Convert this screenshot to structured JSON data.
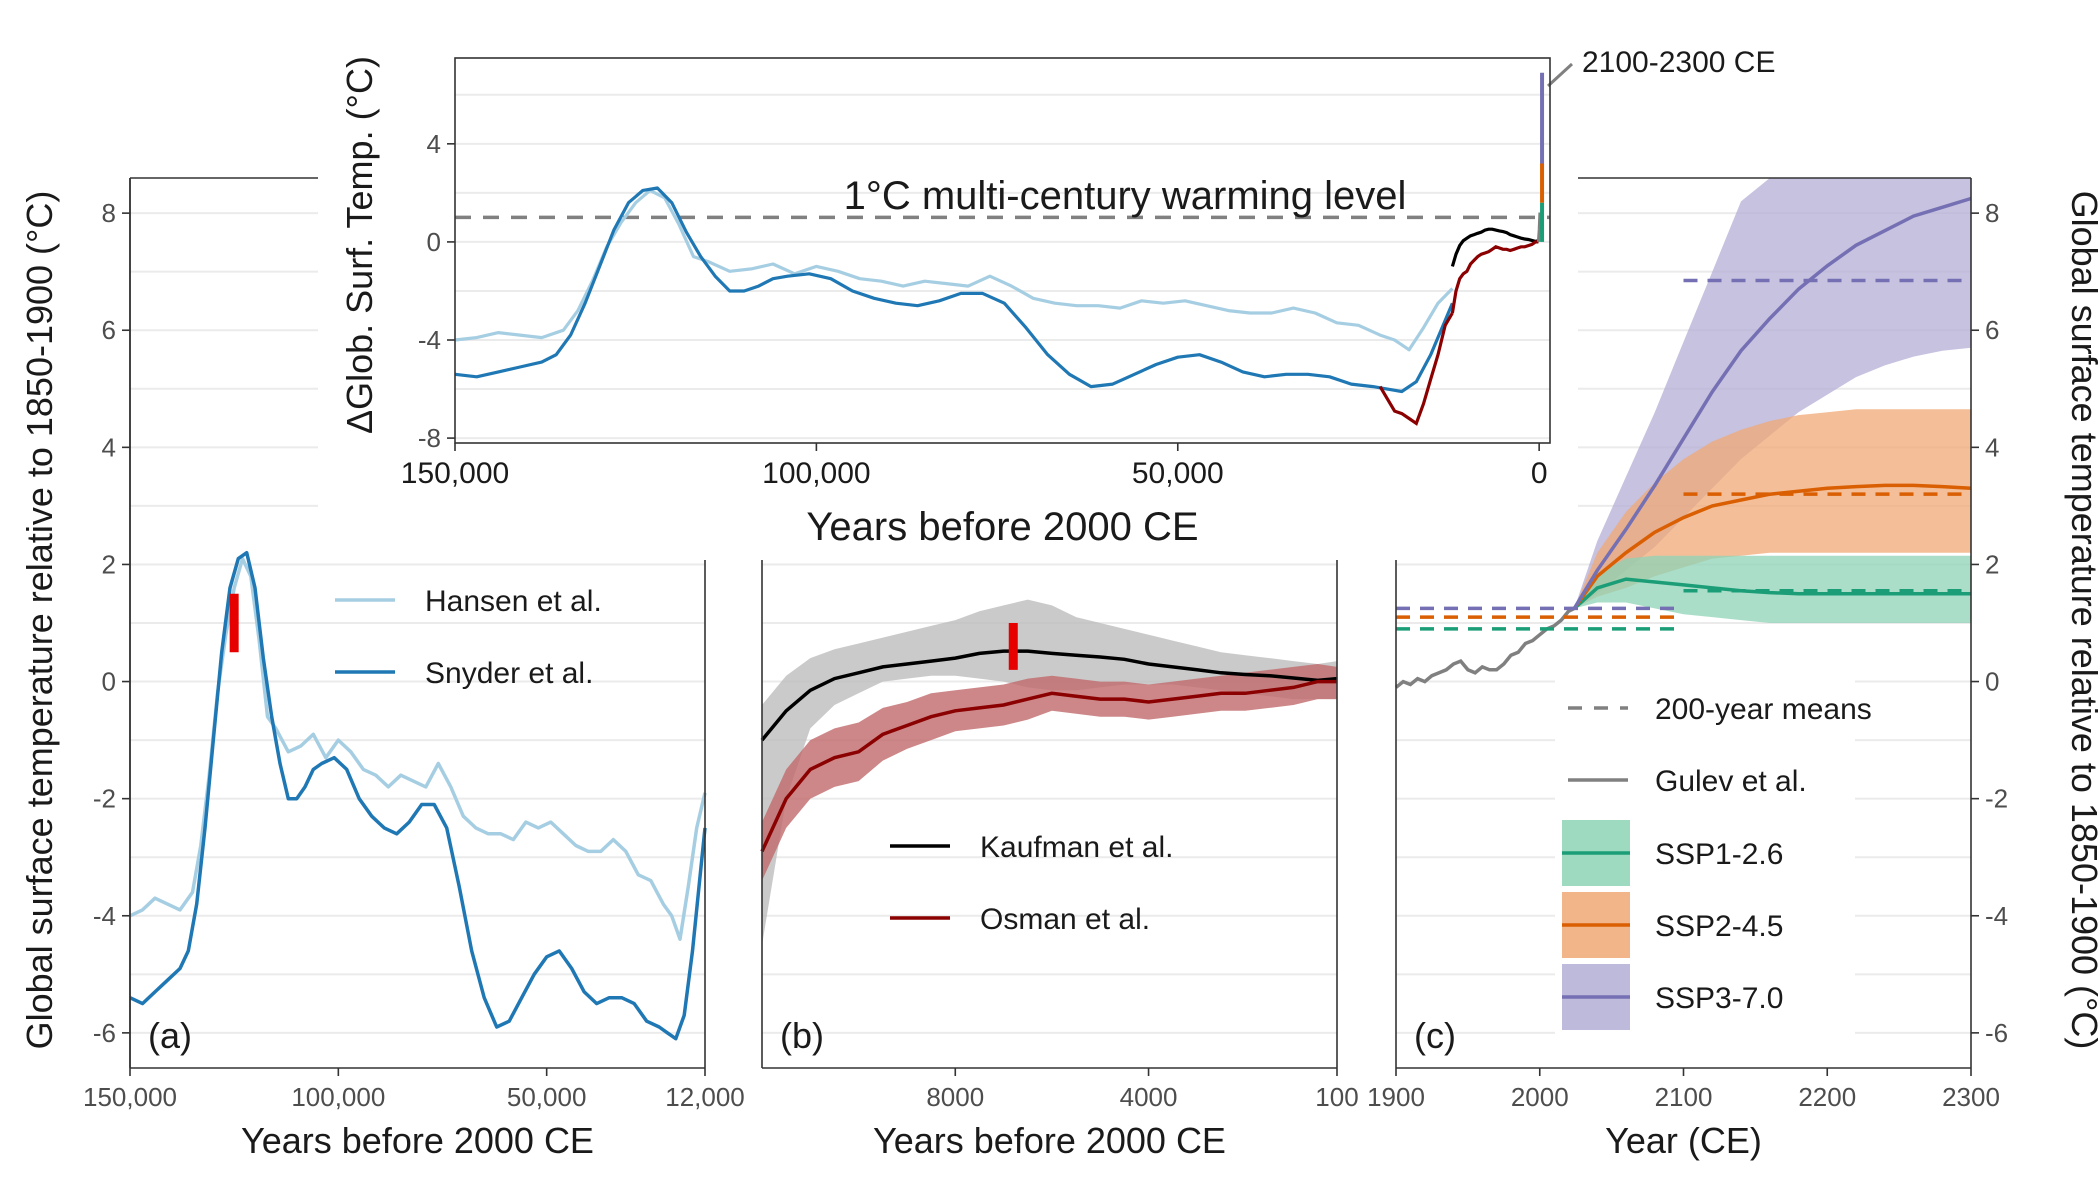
{
  "chart_data": [
    {
      "type": "line",
      "panel_label": "(a)",
      "xlabel": "Years before 2000 CE",
      "ylabel": "Global surface temperature relative to 1850-1900 (°C)",
      "xlim": [
        150000,
        12000
      ],
      "ylim": [
        -6.6,
        8.6
      ],
      "x_ticks": [
        150000,
        100000,
        50000,
        12000
      ],
      "x_tick_labels": [
        "150,000",
        "100,000",
        "50,000",
        "12,000"
      ],
      "y_ticks": [
        -6,
        -4,
        -2,
        0,
        2,
        4,
        6,
        8
      ],
      "grid": true,
      "marker": {
        "x": 125000,
        "y_range": [
          0.5,
          1.5
        ],
        "color": "#e60000"
      },
      "legend": {
        "position": "top-right"
      },
      "series": [
        {
          "name": "Hansen et al.",
          "color": "#a6cee3",
          "x": [
            150000,
            147000,
            144000,
            141000,
            138000,
            135000,
            133000,
            131000,
            129000,
            127000,
            125000,
            123000,
            121000,
            119000,
            117000,
            115000,
            112000,
            109000,
            106000,
            103000,
            100000,
            97000,
            94000,
            91000,
            88000,
            85000,
            82000,
            79000,
            76000,
            73000,
            70000,
            67000,
            64000,
            61000,
            58000,
            55000,
            52000,
            49000,
            46000,
            43000,
            40000,
            37000,
            34000,
            31000,
            28000,
            25000,
            22000,
            20000,
            18000,
            16000,
            14000,
            12000
          ],
          "y": [
            -4.0,
            -3.9,
            -3.7,
            -3.8,
            -3.9,
            -3.6,
            -2.8,
            -1.6,
            -0.2,
            0.8,
            1.6,
            2.1,
            1.8,
            0.7,
            -0.6,
            -0.8,
            -1.2,
            -1.1,
            -0.9,
            -1.3,
            -1.0,
            -1.2,
            -1.5,
            -1.6,
            -1.8,
            -1.6,
            -1.7,
            -1.8,
            -1.4,
            -1.8,
            -2.3,
            -2.5,
            -2.6,
            -2.6,
            -2.7,
            -2.4,
            -2.5,
            -2.4,
            -2.6,
            -2.8,
            -2.9,
            -2.9,
            -2.7,
            -2.9,
            -3.3,
            -3.4,
            -3.8,
            -4.0,
            -4.4,
            -3.5,
            -2.5,
            -1.9
          ]
        },
        {
          "name": "Snyder et al.",
          "color": "#1f78b4",
          "x": [
            150000,
            147000,
            144000,
            141000,
            138000,
            136000,
            134000,
            132000,
            130000,
            128000,
            126000,
            124000,
            122000,
            120000,
            118000,
            116000,
            114000,
            112000,
            110000,
            108000,
            106000,
            104000,
            101000,
            98000,
            95000,
            92000,
            89000,
            86000,
            83000,
            80000,
            77000,
            74000,
            71000,
            68000,
            65000,
            62000,
            59000,
            56000,
            53000,
            50000,
            47000,
            44000,
            41000,
            38000,
            35000,
            32000,
            29000,
            26000,
            23000,
            21000,
            19000,
            17000,
            15000,
            13000,
            12000
          ],
          "y": [
            -5.4,
            -5.5,
            -5.3,
            -5.1,
            -4.9,
            -4.6,
            -3.8,
            -2.5,
            -1.0,
            0.5,
            1.6,
            2.1,
            2.2,
            1.6,
            0.4,
            -0.6,
            -1.4,
            -2.0,
            -2.0,
            -1.8,
            -1.5,
            -1.4,
            -1.3,
            -1.5,
            -2.0,
            -2.3,
            -2.5,
            -2.6,
            -2.4,
            -2.1,
            -2.1,
            -2.5,
            -3.5,
            -4.6,
            -5.4,
            -5.9,
            -5.8,
            -5.4,
            -5.0,
            -4.7,
            -4.6,
            -4.9,
            -5.3,
            -5.5,
            -5.4,
            -5.4,
            -5.5,
            -5.8,
            -5.9,
            -6.0,
            -6.1,
            -5.7,
            -4.6,
            -3.2,
            -2.5
          ]
        }
      ]
    },
    {
      "type": "line",
      "panel_label": "(b)",
      "xlabel": "Years before 2000 CE",
      "xlim": [
        12000,
        100
      ],
      "ylim": [
        -6.6,
        8.6
      ],
      "x_ticks": [
        8000,
        4000,
        100
      ],
      "x_tick_labels": [
        "8000",
        "4000",
        "100"
      ],
      "grid": true,
      "marker": {
        "x": 6800,
        "y_range": [
          0.2,
          1.0
        ],
        "color": "#e60000"
      },
      "legend": {
        "position": "center"
      },
      "series": [
        {
          "name": "Kaufman et al.",
          "color": "#000000",
          "band_color": "#bdbdbd",
          "x": [
            12000,
            11500,
            11000,
            10500,
            10000,
            9500,
            9000,
            8500,
            8000,
            7500,
            7000,
            6500,
            6000,
            5500,
            5000,
            4500,
            4000,
            3500,
            3000,
            2500,
            2000,
            1500,
            1000,
            500,
            100
          ],
          "y": [
            -1.0,
            -0.5,
            -0.15,
            0.05,
            0.15,
            0.25,
            0.3,
            0.35,
            0.4,
            0.48,
            0.52,
            0.52,
            0.48,
            0.45,
            0.42,
            0.38,
            0.3,
            0.25,
            0.2,
            0.15,
            0.12,
            0.1,
            0.06,
            0.02,
            0.05
          ],
          "upper": [
            -0.4,
            0.1,
            0.4,
            0.55,
            0.65,
            0.75,
            0.85,
            0.95,
            1.05,
            1.2,
            1.3,
            1.4,
            1.3,
            1.1,
            1.0,
            0.9,
            0.8,
            0.7,
            0.6,
            0.5,
            0.45,
            0.4,
            0.35,
            0.3,
            0.35
          ],
          "lower": [
            -4.5,
            -2.0,
            -0.8,
            -0.4,
            -0.2,
            0.0,
            0.05,
            0.1,
            0.1,
            0.05,
            0.0,
            -0.1,
            -0.15,
            -0.15,
            -0.1,
            -0.05,
            -0.05,
            -0.05,
            -0.1,
            -0.15,
            -0.2,
            -0.25,
            -0.3,
            -0.3,
            -0.3
          ]
        },
        {
          "name": "Osman et al.",
          "color": "#8b0000",
          "band_color": "#c0696a",
          "x": [
            12000,
            11500,
            11000,
            10500,
            10000,
            9500,
            9000,
            8500,
            8000,
            7500,
            7000,
            6500,
            6000,
            5500,
            5000,
            4500,
            4000,
            3500,
            3000,
            2500,
            2000,
            1500,
            1000,
            500,
            100
          ],
          "y": [
            -2.9,
            -2.0,
            -1.5,
            -1.3,
            -1.2,
            -0.9,
            -0.75,
            -0.6,
            -0.5,
            -0.45,
            -0.4,
            -0.3,
            -0.2,
            -0.25,
            -0.3,
            -0.3,
            -0.35,
            -0.3,
            -0.25,
            -0.2,
            -0.2,
            -0.15,
            -0.1,
            0.0,
            0.0
          ],
          "upper": [
            -2.4,
            -1.5,
            -1.0,
            -0.8,
            -0.7,
            -0.45,
            -0.35,
            -0.2,
            -0.15,
            -0.1,
            -0.05,
            0.05,
            0.1,
            0.05,
            0.0,
            0.0,
            -0.05,
            0.0,
            0.05,
            0.1,
            0.15,
            0.2,
            0.25,
            0.3,
            0.25
          ],
          "lower": [
            -3.4,
            -2.5,
            -2.0,
            -1.8,
            -1.7,
            -1.35,
            -1.15,
            -1.0,
            -0.85,
            -0.8,
            -0.75,
            -0.65,
            -0.5,
            -0.55,
            -0.6,
            -0.6,
            -0.65,
            -0.6,
            -0.55,
            -0.5,
            -0.5,
            -0.45,
            -0.4,
            -0.3,
            -0.3
          ]
        }
      ]
    },
    {
      "type": "line",
      "panel_label": "(c)",
      "xlabel": "Year (CE)",
      "ylabel": "Global surface temperature relative to 1850-1900 (°C)",
      "xlim": [
        1900,
        2300
      ],
      "ylim": [
        -6.6,
        8.6
      ],
      "x_ticks": [
        1900,
        2000,
        2100,
        2200,
        2300
      ],
      "x_tick_labels": [
        "1900",
        "2000",
        "2100",
        "2200",
        "2300"
      ],
      "y_ticks": [
        -6,
        -4,
        -2,
        0,
        2,
        4,
        6,
        8
      ],
      "grid": true,
      "legend": {
        "position": "bottom-right"
      },
      "series": [
        {
          "name": "Gulev et al.",
          "color": "#808080",
          "x": [
            1900,
            1905,
            1910,
            1915,
            1920,
            1925,
            1930,
            1935,
            1940,
            1945,
            1950,
            1955,
            1960,
            1965,
            1970,
            1975,
            1980,
            1985,
            1990,
            1995,
            2000,
            2005,
            2010,
            2015,
            2020,
            2024
          ],
          "y": [
            -0.1,
            0.0,
            -0.05,
            0.05,
            0.0,
            0.1,
            0.15,
            0.2,
            0.3,
            0.35,
            0.2,
            0.15,
            0.25,
            0.2,
            0.2,
            0.3,
            0.45,
            0.5,
            0.65,
            0.7,
            0.8,
            0.9,
            0.95,
            1.05,
            1.2,
            1.25
          ]
        },
        {
          "name": "SSP1-2.6",
          "color": "#1b9e77",
          "band_color": "#8dd3b5",
          "mean_200yr": {
            "x_range": [
              2100,
              2300
            ],
            "y": 1.55
          },
          "mean_hist": {
            "x_range": [
              1900,
              2100
            ],
            "y": 0.9
          },
          "x": [
            2024,
            2040,
            2060,
            2080,
            2100,
            2120,
            2140,
            2160,
            2180,
            2200,
            2220,
            2240,
            2260,
            2280,
            2300
          ],
          "y": [
            1.25,
            1.6,
            1.75,
            1.7,
            1.65,
            1.6,
            1.55,
            1.52,
            1.5,
            1.5,
            1.5,
            1.5,
            1.5,
            1.5,
            1.5
          ],
          "upper": [
            1.25,
            1.85,
            2.1,
            2.15,
            2.15,
            2.15,
            2.15,
            2.15,
            2.15,
            2.15,
            2.15,
            2.15,
            2.15,
            2.15,
            2.15
          ],
          "lower": [
            1.25,
            1.35,
            1.35,
            1.25,
            1.15,
            1.1,
            1.05,
            1.0,
            1.0,
            1.0,
            1.0,
            1.0,
            1.0,
            1.0,
            1.0
          ]
        },
        {
          "name": "SSP2-4.5",
          "color": "#d95f02",
          "band_color": "#f0a875",
          "mean_200yr": {
            "x_range": [
              2100,
              2300
            ],
            "y": 3.2
          },
          "mean_hist": {
            "x_range": [
              1900,
              2100
            ],
            "y": 1.1
          },
          "x": [
            2024,
            2040,
            2060,
            2080,
            2100,
            2120,
            2140,
            2160,
            2180,
            2200,
            2220,
            2240,
            2260,
            2280,
            2300
          ],
          "y": [
            1.25,
            1.8,
            2.2,
            2.55,
            2.8,
            3.0,
            3.1,
            3.2,
            3.25,
            3.3,
            3.33,
            3.35,
            3.35,
            3.33,
            3.3
          ],
          "upper": [
            1.25,
            2.2,
            2.9,
            3.4,
            3.8,
            4.1,
            4.3,
            4.45,
            4.55,
            4.6,
            4.65,
            4.65,
            4.65,
            4.65,
            4.65
          ],
          "lower": [
            1.25,
            1.45,
            1.6,
            1.8,
            1.95,
            2.1,
            2.15,
            2.2,
            2.2,
            2.2,
            2.2,
            2.2,
            2.2,
            2.2,
            2.2
          ]
        },
        {
          "name": "SSP3-7.0",
          "color": "#7570b3",
          "band_color": "#b3aed6",
          "mean_200yr": {
            "x_range": [
              2100,
              2300
            ],
            "y": 6.85
          },
          "mean_hist": {
            "x_range": [
              1900,
              2100
            ],
            "y": 1.25
          },
          "x": [
            2024,
            2040,
            2060,
            2080,
            2100,
            2120,
            2140,
            2160,
            2180,
            2200,
            2220,
            2240,
            2260,
            2280,
            2300
          ],
          "y": [
            1.25,
            1.9,
            2.6,
            3.35,
            4.15,
            4.95,
            5.65,
            6.2,
            6.7,
            7.1,
            7.45,
            7.7,
            7.95,
            8.1,
            8.25
          ],
          "upper": [
            1.25,
            2.4,
            3.5,
            4.6,
            5.8,
            7.0,
            8.2,
            8.6,
            8.6,
            8.6,
            8.6,
            8.6,
            8.6,
            8.6,
            8.6
          ],
          "lower": [
            1.25,
            1.5,
            1.9,
            2.3,
            2.8,
            3.3,
            3.8,
            4.2,
            4.6,
            4.9,
            5.2,
            5.4,
            5.55,
            5.65,
            5.7
          ]
        }
      ],
      "legend_entries": {
        "mean_label": "200-year means"
      }
    },
    {
      "type": "line",
      "panel_label": "inset",
      "xlabel": "Years before 2000 CE",
      "ylabel": "ΔGlob. Surf. Temp. (°C)",
      "xlim": [
        150000,
        -1500
      ],
      "ylim": [
        -8.2,
        7.5
      ],
      "x_ticks": [
        150000,
        100000,
        50000,
        0
      ],
      "x_tick_labels": [
        "150,000",
        "100,000",
        "50,000",
        "0"
      ],
      "y_ticks": [
        -8,
        -4,
        0,
        4
      ],
      "y_tick_labels": [
        "-8",
        "-4",
        "0",
        "4"
      ],
      "reference_line": {
        "y": 1,
        "label": "1°C multi-century warming level"
      },
      "annotation": "2100-2300 CE",
      "future_bars": [
        {
          "name": "SSP1-2.6",
          "color": "#1b9e77",
          "range": [
            0,
            1.6
          ]
        },
        {
          "name": "SSP2-4.5",
          "color": "#d95f02",
          "range": [
            1.6,
            3.2
          ]
        },
        {
          "name": "SSP3-7.0",
          "color": "#7570b3",
          "range": [
            3.2,
            6.9
          ]
        }
      ]
    }
  ]
}
